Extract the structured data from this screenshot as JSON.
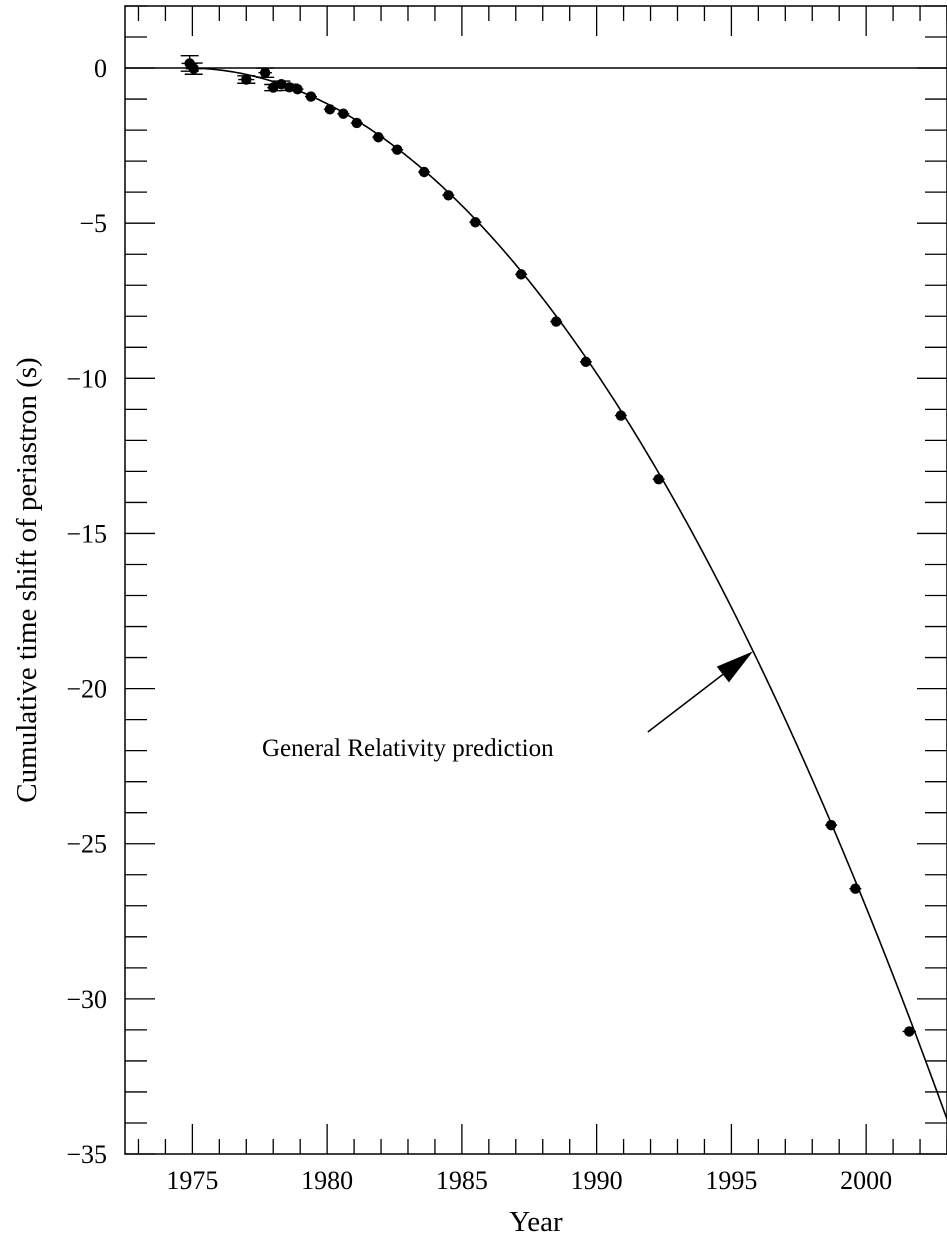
{
  "chart_data": {
    "type": "scatter",
    "title": "",
    "xlabel": "Year",
    "ylabel": "Cumulative time shift of periastron  (s)",
    "xlim": [
      1972.5,
      2003
    ],
    "ylim": [
      -35,
      2
    ],
    "x_ticks": [
      1975,
      1980,
      1985,
      1990,
      1995,
      2000
    ],
    "x_tick_labels": [
      "1975",
      "1980",
      "1985",
      "1990",
      "1995",
      "2000"
    ],
    "y_ticks": [
      0,
      -5,
      -10,
      -15,
      -20,
      -25,
      -30,
      -35
    ],
    "y_tick_labels": [
      "0",
      "−5",
      "−10",
      "−15",
      "−20",
      "−25",
      "−30",
      "−35"
    ],
    "x_minor_step": 1,
    "y_minor_step": 1,
    "grid": false,
    "legend": "none",
    "zero_line": true,
    "series": [
      {
        "type": "scatter_errorbar",
        "points": [
          {
            "x": 1974.9,
            "y": 0.15,
            "yerr": 0.25,
            "xerr": 0.3
          },
          {
            "x": 1975.05,
            "y": -0.02,
            "yerr": 0.18,
            "xerr": 0.3
          },
          {
            "x": 1977.0,
            "y": -0.37,
            "yerr": 0.12,
            "xerr": 0.3
          },
          {
            "x": 1977.7,
            "y": -0.15,
            "yerr": 0.15,
            "xerr": 0.25
          },
          {
            "x": 1978.0,
            "y": -0.63,
            "yerr": 0.1,
            "xerr": 0.2
          },
          {
            "x": 1978.3,
            "y": -0.52,
            "yerr": 0.1,
            "xerr": 0.2
          },
          {
            "x": 1978.6,
            "y": -0.62,
            "yerr": 0.1,
            "xerr": 0.2
          },
          {
            "x": 1978.9,
            "y": -0.68,
            "yerr": 0.08,
            "xerr": 0.2
          },
          {
            "x": 1979.4,
            "y": -0.92,
            "yerr": 0.06,
            "xerr": 0.2
          },
          {
            "x": 1980.1,
            "y": -1.33,
            "yerr": 0.05,
            "xerr": 0.2
          },
          {
            "x": 1980.6,
            "y": -1.47,
            "yerr": 0.05,
            "xerr": 0.2
          },
          {
            "x": 1981.1,
            "y": -1.77,
            "yerr": 0.05,
            "xerr": 0.2
          },
          {
            "x": 1981.9,
            "y": -2.23,
            "yerr": 0.05,
            "xerr": 0.2
          },
          {
            "x": 1982.6,
            "y": -2.63,
            "yerr": 0.05,
            "xerr": 0.2
          },
          {
            "x": 1983.6,
            "y": -3.35,
            "yerr": 0.05,
            "xerr": 0.2
          },
          {
            "x": 1984.5,
            "y": -4.1,
            "yerr": 0.05,
            "xerr": 0.2
          },
          {
            "x": 1985.5,
            "y": -4.97,
            "yerr": 0.05,
            "xerr": 0.2
          },
          {
            "x": 1987.2,
            "y": -6.65,
            "yerr": 0.05,
            "xerr": 0.2
          },
          {
            "x": 1988.5,
            "y": -8.17,
            "yerr": 0.05,
            "xerr": 0.2
          },
          {
            "x": 1989.6,
            "y": -9.47,
            "yerr": 0.05,
            "xerr": 0.2
          },
          {
            "x": 1990.9,
            "y": -11.2,
            "yerr": 0.05,
            "xerr": 0.2
          },
          {
            "x": 1992.3,
            "y": -13.25,
            "yerr": 0.05,
            "xerr": 0.2
          },
          {
            "x": 1998.7,
            "y": -24.4,
            "yerr": 0.05,
            "xerr": 0.2
          },
          {
            "x": 1999.6,
            "y": -26.45,
            "yerr": 0.05,
            "xerr": 0.2
          },
          {
            "x": 2001.6,
            "y": -31.05,
            "yerr": 0.05,
            "xerr": 0.25
          }
        ]
      },
      {
        "type": "curve",
        "x_start": 1974.8,
        "x_end": 2003,
        "x_ref": 1974.8,
        "coefficient": -0.0426
      }
    ],
    "annotations": [
      {
        "text": "General Relativity prediction",
        "arrow_from": [
          1991.9,
          -21.4
        ],
        "arrow_to": [
          1995.8,
          -18.8
        ]
      }
    ]
  }
}
